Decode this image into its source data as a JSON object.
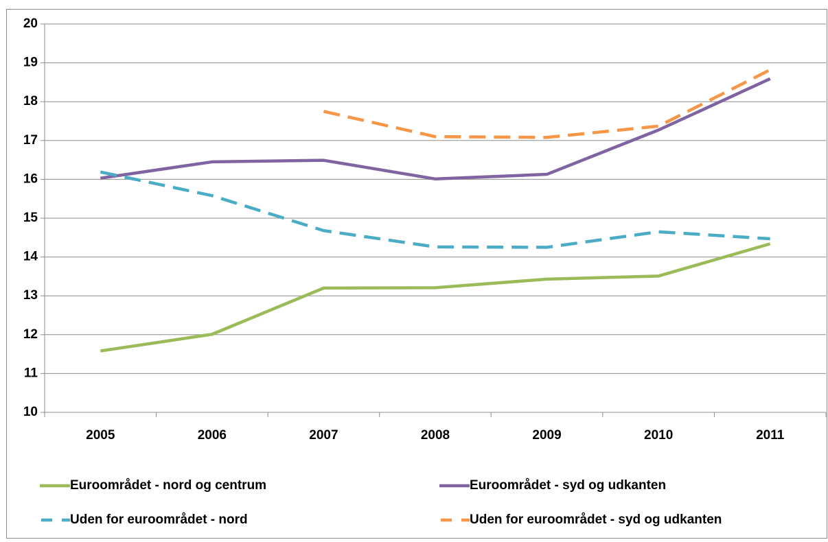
{
  "chart_data": {
    "type": "line",
    "categories": [
      "2005",
      "2006",
      "2007",
      "2008",
      "2009",
      "2010",
      "2011"
    ],
    "series": [
      {
        "name": "Euroområdet - nord og centrum",
        "color": "#9bbb59",
        "dashed": false,
        "values": [
          11.58,
          12.01,
          13.2,
          13.21,
          13.43,
          13.51,
          14.34
        ]
      },
      {
        "name": "Euroområdet - syd og udkanten",
        "color": "#8064a2",
        "dashed": false,
        "values": [
          16.03,
          16.45,
          16.49,
          16.01,
          16.13,
          17.27,
          18.59
        ]
      },
      {
        "name": "Uden for euroområdet - nord",
        "color": "#4bacc6",
        "dashed": true,
        "values": [
          16.19,
          15.58,
          14.68,
          14.26,
          14.25,
          14.65,
          14.47
        ]
      },
      {
        "name": "Uden for euroområdet - syd og udkanten",
        "color": "#f79646",
        "dashed": true,
        "values": [
          null,
          null,
          17.75,
          17.1,
          17.08,
          17.37,
          18.82
        ]
      }
    ],
    "ylim": [
      10,
      20
    ],
    "yticks": [
      10,
      11,
      12,
      13,
      14,
      15,
      16,
      17,
      18,
      19,
      20
    ],
    "grid": true,
    "legend": "bottom"
  }
}
